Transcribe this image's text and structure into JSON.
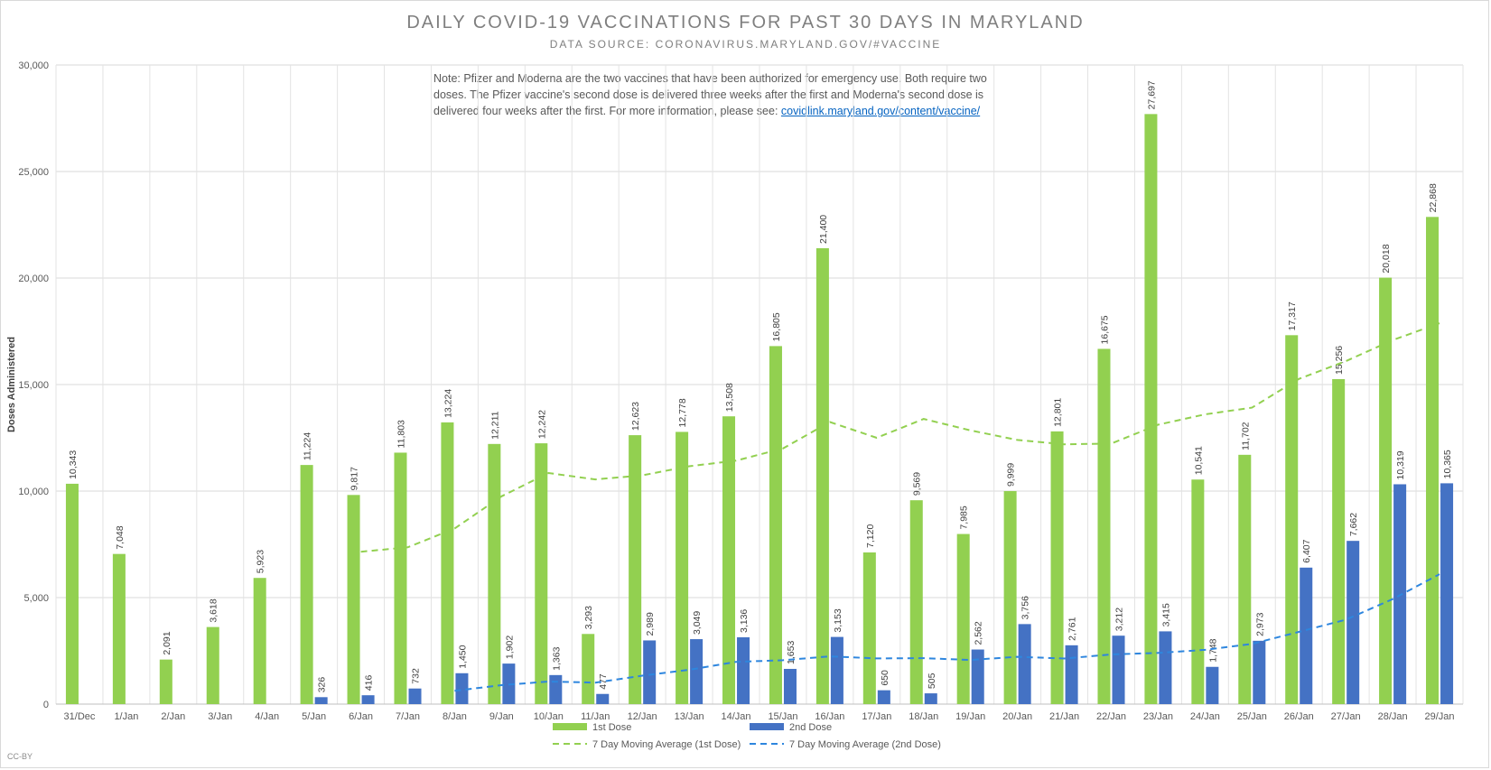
{
  "title": "DAILY COVID-19 VACCINATIONS FOR PAST 30 DAYS IN MARYLAND",
  "subtitle": "DATA SOURCE: CORONAVIRUS.MARYLAND.GOV/#VACCINE",
  "note_text": "Note: Pfizer and Moderna are the two vaccines that have been authorized for emergency use. Both require two doses. The Pfizer vaccine's second dose is delivered three weeks after the first and Moderna's second dose is delivered four weeks after the first. For more information, please see: ",
  "note_link": "covidlink.maryland.gov/content/vaccine/",
  "credit": "CC-BY",
  "chart_data": {
    "type": "bar",
    "ylabel": "Doses Administered",
    "ylim": [
      0,
      30000
    ],
    "yticks": [
      0,
      5000,
      10000,
      15000,
      20000,
      25000,
      30000
    ],
    "ytick_labels": [
      "0",
      "5,000",
      "10,000",
      "15,000",
      "20,000",
      "25,000",
      "30,000"
    ],
    "grid": true,
    "legend_position": "bottom",
    "categories": [
      "31/Dec",
      "1/Jan",
      "2/Jan",
      "3/Jan",
      "4/Jan",
      "5/Jan",
      "6/Jan",
      "7/Jan",
      "8/Jan",
      "9/Jan",
      "10/Jan",
      "11/Jan",
      "12/Jan",
      "13/Jan",
      "14/Jan",
      "15/Jan",
      "16/Jan",
      "17/Jan",
      "18/Jan",
      "19/Jan",
      "20/Jan",
      "21/Jan",
      "22/Jan",
      "23/Jan",
      "24/Jan",
      "25/Jan",
      "26/Jan",
      "27/Jan",
      "28/Jan",
      "29/Jan"
    ],
    "series": [
      {
        "name": "1st Dose",
        "kind": "bar",
        "color": "#92d050",
        "values": [
          10343,
          7048,
          2091,
          3618,
          5923,
          11224,
          9817,
          11803,
          13224,
          12211,
          12242,
          3293,
          12623,
          12778,
          13508,
          16805,
          21400,
          7120,
          9569,
          7985,
          9999,
          12801,
          16675,
          27697,
          10541,
          11702,
          17317,
          15256,
          20018,
          22868
        ]
      },
      {
        "name": "2nd Dose",
        "kind": "bar",
        "color": "#4472c4",
        "values": [
          null,
          null,
          null,
          null,
          null,
          326,
          416,
          732,
          1450,
          1902,
          1363,
          477,
          2989,
          3049,
          3136,
          1653,
          3153,
          650,
          505,
          2562,
          3756,
          2761,
          3212,
          3415,
          1748,
          2973,
          6407,
          7662,
          10319,
          10365
        ]
      },
      {
        "name": "7 Day Moving Average (1st Dose)",
        "kind": "line",
        "color": "#92d050",
        "values": [
          null,
          null,
          null,
          null,
          null,
          null,
          7152,
          7361,
          8243,
          9755,
          10849,
          10545,
          10737,
          11166,
          11429,
          11998,
          13241,
          12502,
          13385,
          12847,
          12398,
          12195,
          12227,
          13115,
          13601,
          13914,
          15262,
          16097,
          17086,
          17876
        ]
      },
      {
        "name": "7 Day Moving Average (2nd Dose)",
        "kind": "line",
        "color": "#2e86de",
        "values": [
          null,
          null,
          null,
          null,
          null,
          null,
          null,
          null,
          622,
          889,
          1060,
          1008,
          1333,
          1609,
          1981,
          2058,
          2243,
          2143,
          2158,
          2071,
          2219,
          2140,
          2331,
          2403,
          2545,
          2825,
          3390,
          3962,
          4927,
          6097
        ]
      }
    ]
  }
}
